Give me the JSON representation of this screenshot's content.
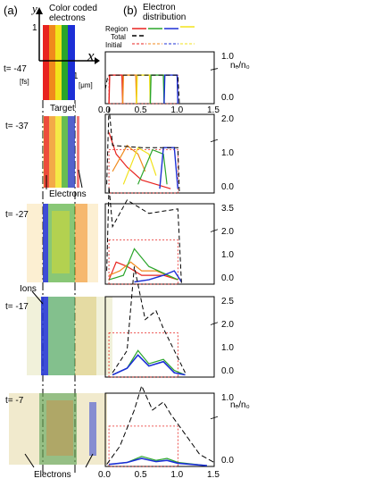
{
  "panel_a": {
    "label": "(a)",
    "title_line1": "Color coded",
    "title_line2": "electrons",
    "axis_y": "y",
    "axis_x": "x",
    "tick_y": "1",
    "tick_x": "1",
    "unit_x": "[μm]",
    "unit_t": "[fs]",
    "target_label": "Target",
    "electrons_label": "Electrons",
    "ions_label": "Ions",
    "bottom_label": "Electrons"
  },
  "panel_b": {
    "label": "(b)",
    "title_line1": "Electron",
    "title_line2": "distribution",
    "legend": {
      "region": "Region",
      "total": "Total",
      "initial": "Initial"
    },
    "ylabel": "nₑ/n₀",
    "xlabel": "x",
    "xunit": "[μm]",
    "xunit_last": "1.0 [μm]",
    "xticks": [
      "0.0",
      "0.5",
      "1.0",
      "1.5"
    ]
  },
  "rows": [
    {
      "time": "t= -47",
      "yticks": [
        "1.0",
        "0.0"
      ]
    },
    {
      "time": "t= -37",
      "yticks": [
        "2.0",
        "1.0",
        "0.0"
      ]
    },
    {
      "time": "t= -27",
      "yticks": [
        "3.5",
        "2.0",
        "1.0",
        "0.0"
      ]
    },
    {
      "time": "t= -17",
      "yticks": [
        "2.5",
        "2.0",
        "1.0",
        "0.0"
      ]
    },
    {
      "time": "t= -7",
      "yticks": [
        "1.0",
        "0.0"
      ]
    }
  ],
  "colors": {
    "red": "#e8231f",
    "orange": "#f08a1c",
    "yellow": "#f2e21a",
    "green": "#2aa52a",
    "blue": "#1c2fd6",
    "black": "#000000"
  }
}
